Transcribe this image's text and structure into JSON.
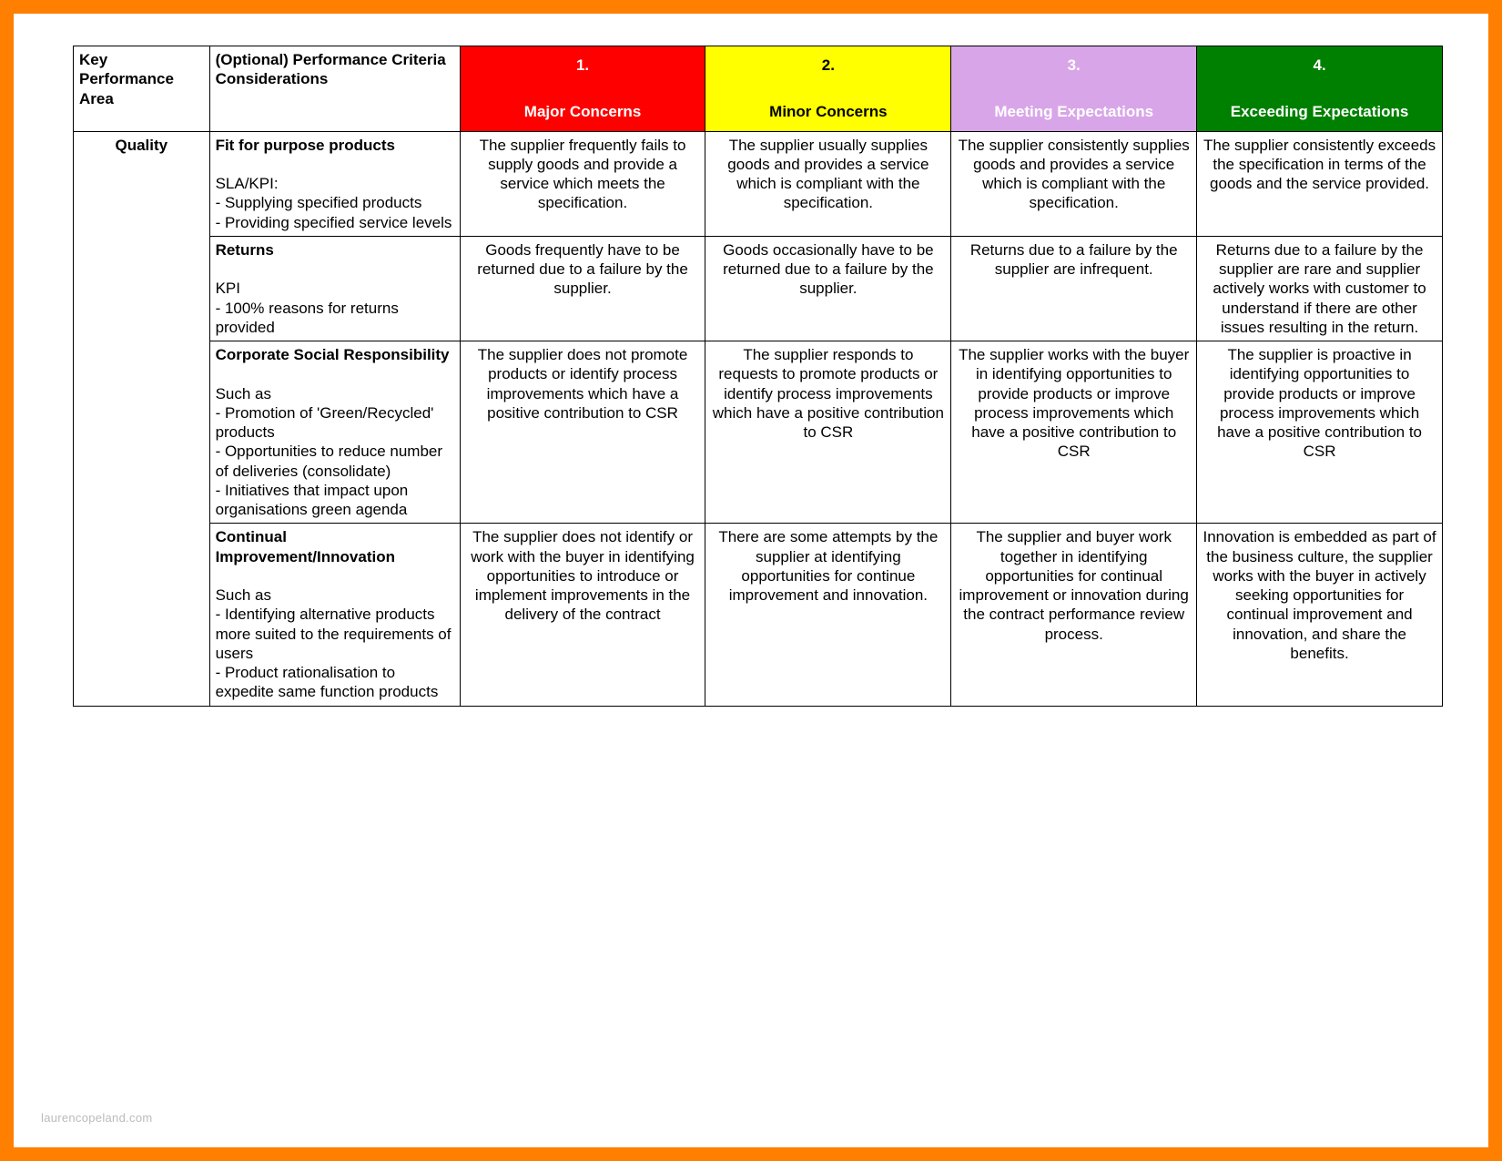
{
  "page": {
    "outer_border_color": "#ff7f00",
    "background_color": "#ffffff",
    "footer": "laurencopeland.com"
  },
  "table": {
    "header": {
      "kpa": "Key Performance Area",
      "criteria": "(Optional) Performance Criteria Considerations",
      "ratings": [
        {
          "num": "1.",
          "label": "Major Concerns",
          "bg": "#ff0000",
          "fg": "#ffffff"
        },
        {
          "num": "2.",
          "label": "Minor Concerns",
          "bg": "#ffff00",
          "fg": "#000000"
        },
        {
          "num": "3.",
          "label": "Meeting Expectations",
          "bg": "#d8a6e8",
          "fg": "#ffffff"
        },
        {
          "num": "4.",
          "label": "Exceeding Expectations",
          "bg": "#008000",
          "fg": "#ffffff"
        }
      ]
    },
    "kpa_label": "Quality",
    "rows": [
      {
        "criteria_title": "Fit for purpose products",
        "criteria_detail": "SLA/KPI:\n- Supplying specified products\n- Providing specified service levels",
        "c1": "The supplier frequently fails to supply goods and provide a service which meets the specification.",
        "c2": "The supplier usually supplies goods and provides a service which is compliant with the specification.",
        "c3": "The supplier consistently supplies goods and provides a service which is compliant with the specification.",
        "c4": "The supplier consistently exceeds the specification in terms of the goods and the service provided."
      },
      {
        "criteria_title": "Returns",
        "criteria_detail": "KPI\n- 100% reasons for returns provided",
        "c1": "Goods frequently have to be returned due to a failure by the supplier.",
        "c2": "Goods occasionally  have to be returned due to a failure by the supplier.",
        "c3": "Returns due to a failure by the supplier are infrequent.",
        "c4": "Returns due to a failure by the supplier are rare and supplier actively works with customer to understand if there are other issues resulting in the return."
      },
      {
        "criteria_title": "Corporate Social Responsibility",
        "criteria_detail": "Such as\n- Promotion of 'Green/Recycled' products\n- Opportunities to reduce number of deliveries (consolidate)\n- Initiatives that impact upon organisations green agenda",
        "c1": "The supplier does not promote products or identify process improvements which have a positive contribution to CSR",
        "c2": "The supplier responds to requests to promote products or identify process improvements which have a positive contribution to CSR",
        "c3": "The supplier works with the buyer in identifying opportunities to provide products or improve process improvements which have a positive contribution to CSR",
        "c4": "The supplier is proactive in identifying opportunities to provide products or improve process improvements which have a positive contribution to CSR"
      },
      {
        "criteria_title": "Continual Improvement/Innovation",
        "criteria_detail": "Such as\n- Identifying alternative products more suited to the requirements of users\n- Product rationalisation to expedite same function products",
        "c1": "The supplier does not identify or work with the buyer in identifying opportunities to introduce or implement improvements in the delivery of the contract",
        "c2": "There are some attempts by the supplier at identifying opportunities for continue improvement and innovation.",
        "c3": "The supplier and buyer work together in identifying opportunities for continual improvement or innovation during the contract performance review process.",
        "c4": "Innovation is embedded as part of the business culture, the supplier works with the buyer in actively seeking opportunities for continual improvement and innovation, and share the benefits."
      }
    ]
  }
}
